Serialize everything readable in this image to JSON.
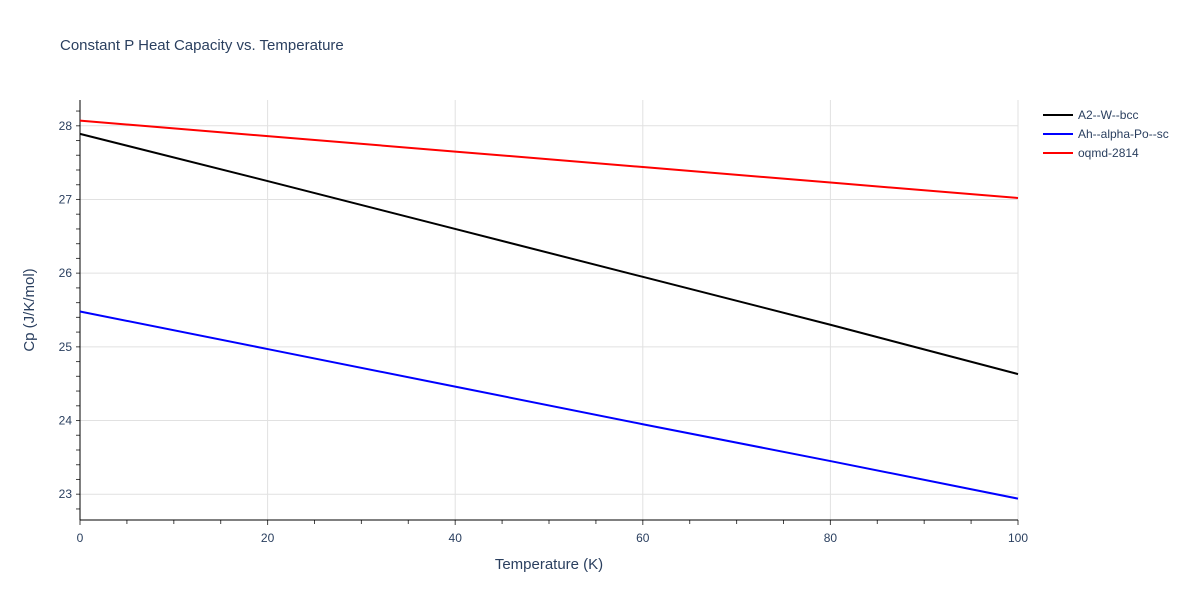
{
  "chart_data": {
    "type": "line",
    "title": "Constant P Heat Capacity vs. Temperature",
    "xlabel": "Temperature (K)",
    "ylabel": "Cp (J/K/mol)",
    "xlim": [
      0,
      100
    ],
    "ylim": [
      22.65,
      28.35
    ],
    "xticks": [
      0,
      20,
      40,
      60,
      80,
      100
    ],
    "yticks": [
      23,
      24,
      25,
      26,
      27,
      28
    ],
    "grid": true,
    "legend": "top-right",
    "x": [
      0,
      20,
      40,
      60,
      80,
      100
    ],
    "series": [
      {
        "name": "A2--W--bcc",
        "color": "#000000",
        "values": [
          27.89,
          27.25,
          26.6,
          25.95,
          25.3,
          24.63
        ]
      },
      {
        "name": "Ah--alpha-Po--sc",
        "color": "#0000ff",
        "values": [
          25.48,
          24.97,
          24.46,
          23.95,
          23.45,
          22.94
        ]
      },
      {
        "name": "oqmd-2814",
        "color": "#ff0000",
        "values": [
          28.07,
          27.86,
          27.65,
          27.44,
          27.23,
          27.02
        ]
      }
    ]
  }
}
